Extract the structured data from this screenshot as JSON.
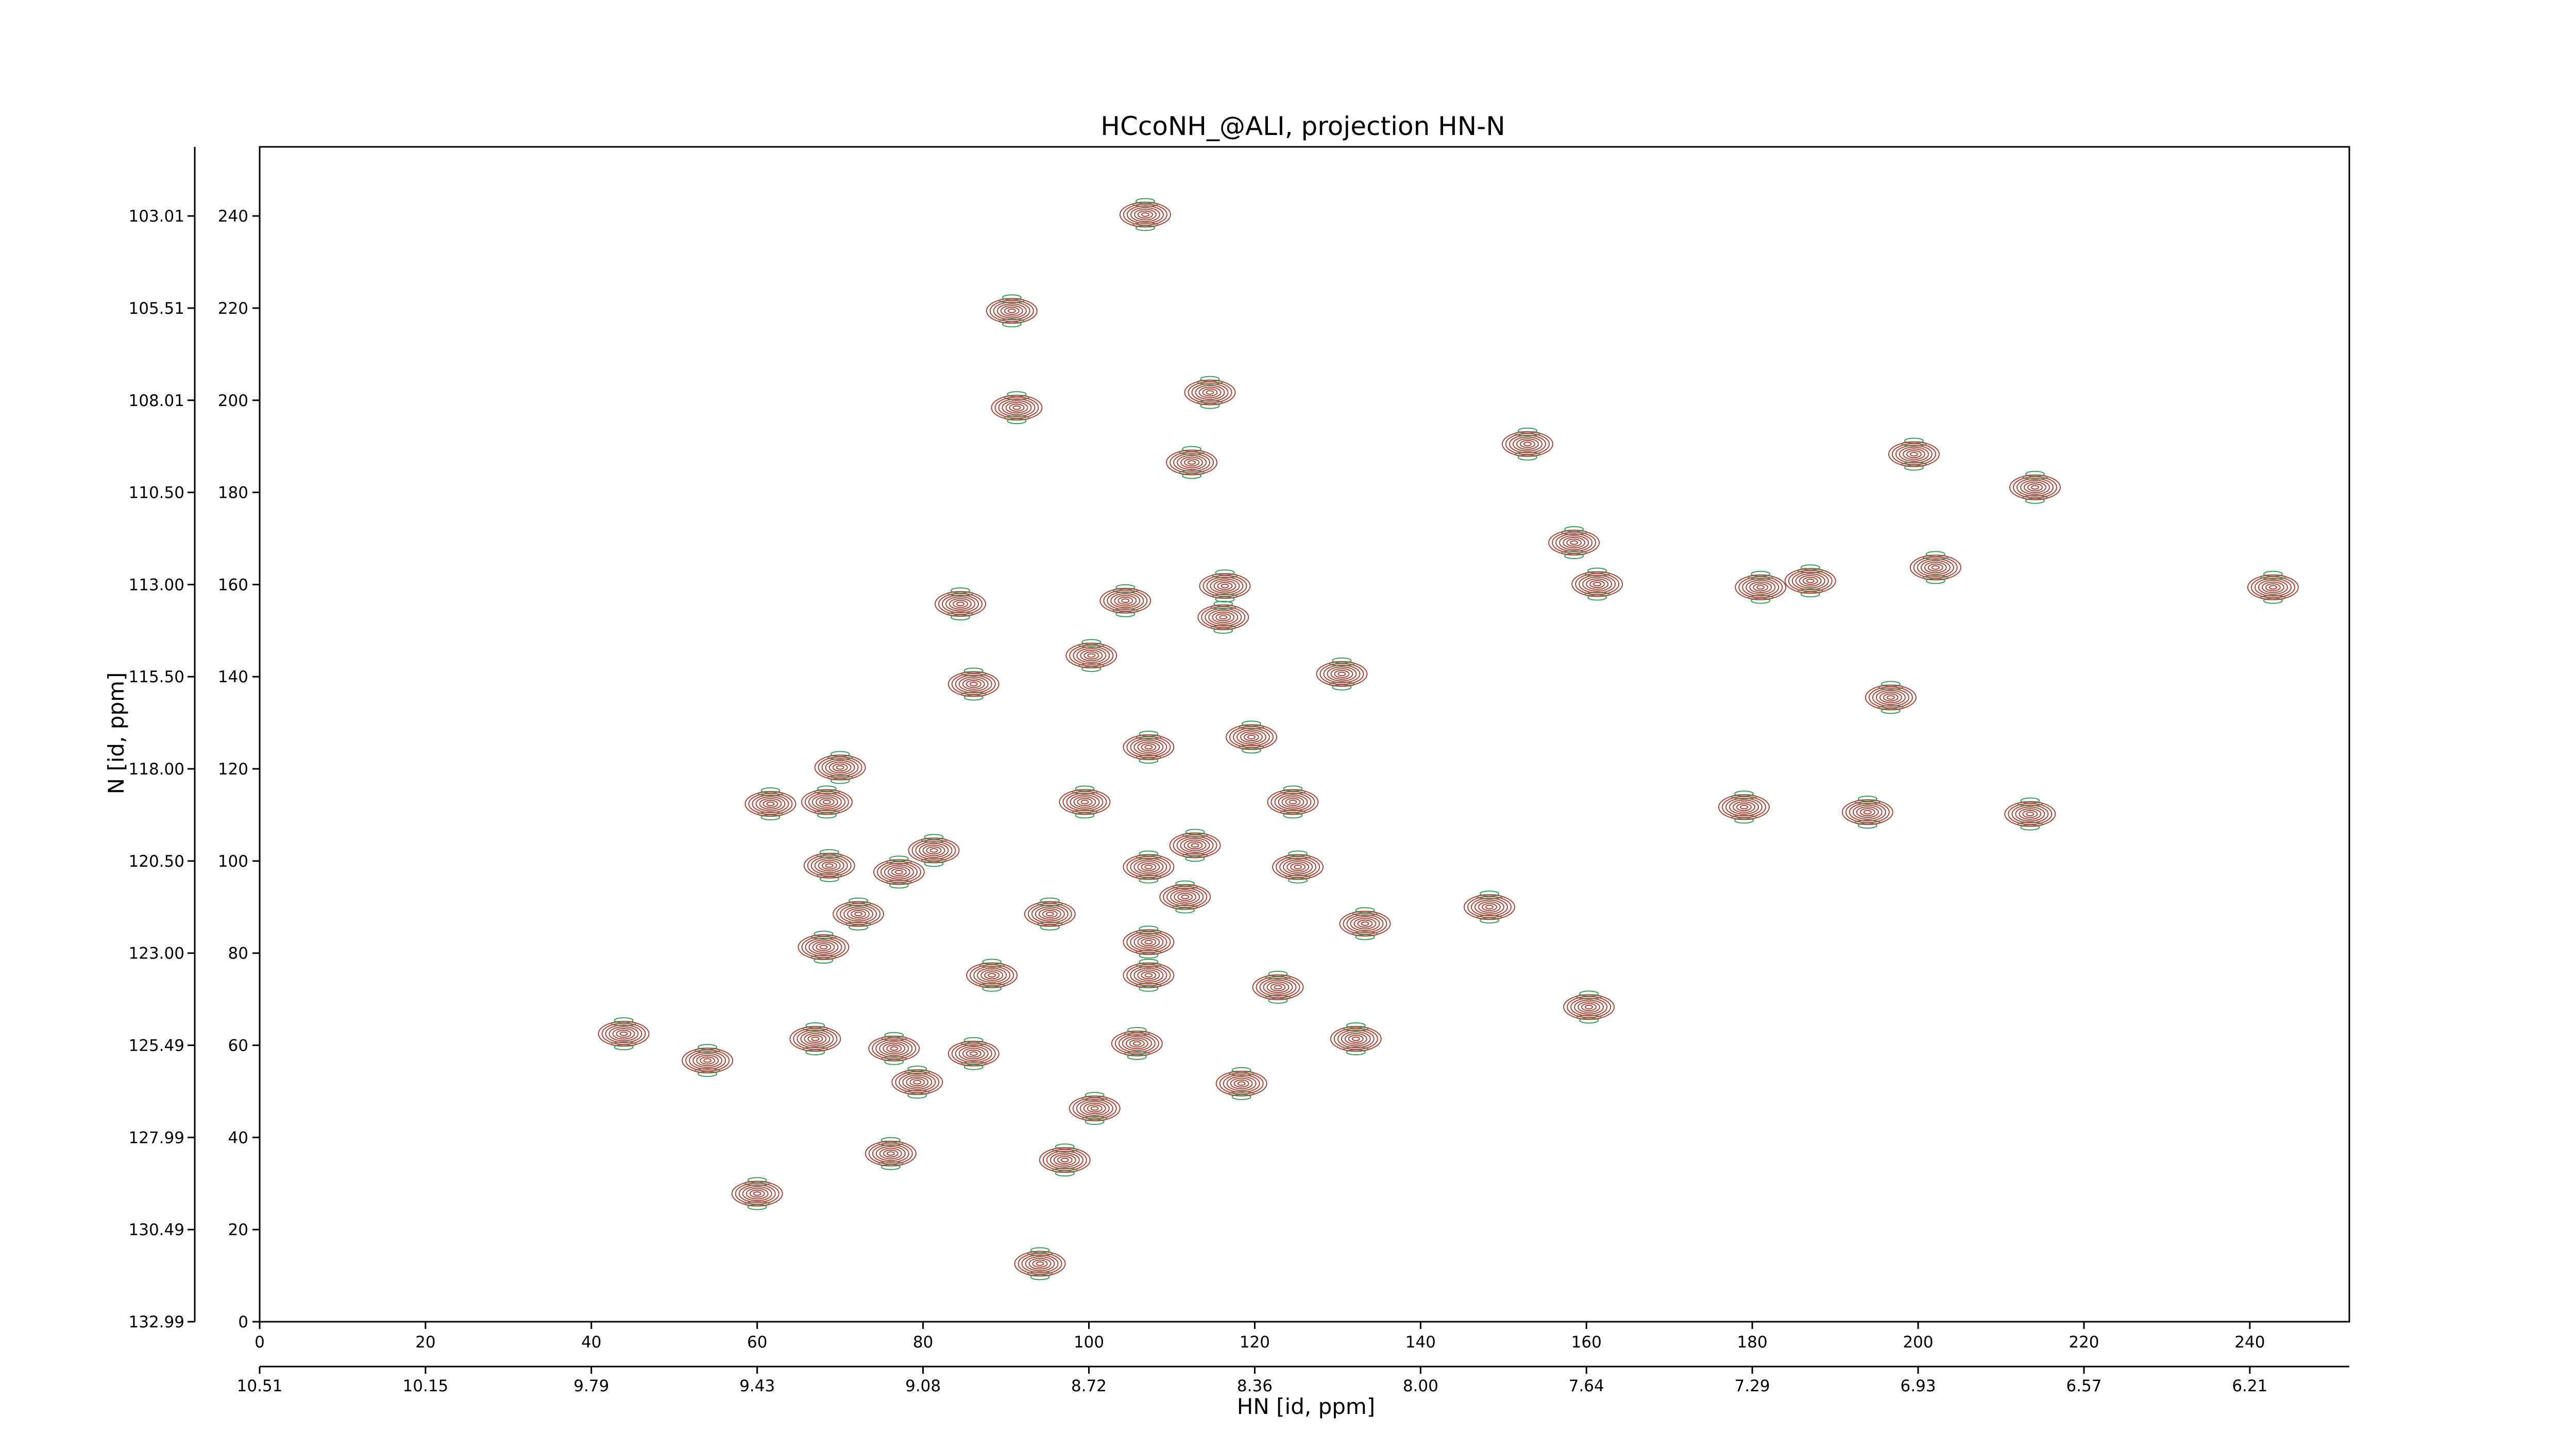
{
  "chart_data": {
    "type": "contour",
    "title": "HCcoNH_@ALI, projection HN-N",
    "x_label": "HN [id, ppm]",
    "y_label": "N [id, ppm]",
    "xlim": [
      0,
      252
    ],
    "ylim": [
      0,
      255
    ],
    "xticks": [
      0,
      20,
      40,
      60,
      80,
      100,
      120,
      140,
      160,
      180,
      200,
      220,
      240
    ],
    "yticks": [
      0,
      20,
      40,
      60,
      80,
      100,
      120,
      140,
      160,
      180,
      200,
      220,
      240
    ],
    "x2ticks": [
      {
        "value": 0,
        "label": "10.51"
      },
      {
        "value": 20,
        "label": "10.15"
      },
      {
        "value": 40,
        "label": "9.79"
      },
      {
        "value": 60,
        "label": "9.43"
      },
      {
        "value": 80,
        "label": "9.08"
      },
      {
        "value": 100,
        "label": "8.72"
      },
      {
        "value": 120,
        "label": "8.36"
      },
      {
        "value": 140,
        "label": "8.00"
      },
      {
        "value": 160,
        "label": "7.64"
      },
      {
        "value": 180,
        "label": "7.29"
      },
      {
        "value": 200,
        "label": "6.93"
      },
      {
        "value": 220,
        "label": "6.57"
      },
      {
        "value": 240,
        "label": "6.21"
      }
    ],
    "y2ticks": [
      {
        "value": 0,
        "label": "132.99"
      },
      {
        "value": 20,
        "label": "130.49"
      },
      {
        "value": 40,
        "label": "127.99"
      },
      {
        "value": 60,
        "label": "125.49"
      },
      {
        "value": 80,
        "label": "123.00"
      },
      {
        "value": 100,
        "label": "120.50"
      },
      {
        "value": 120,
        "label": "118.00"
      },
      {
        "value": 140,
        "label": "115.50"
      },
      {
        "value": 160,
        "label": "113.00"
      },
      {
        "value": 180,
        "label": "110.50"
      },
      {
        "value": 200,
        "label": "108.01"
      },
      {
        "value": 220,
        "label": "105.51"
      },
      {
        "value": 240,
        "label": "103.01"
      }
    ],
    "positive_color": "#a0493c",
    "negative_color": "#3c9a5c",
    "peaks": {
      "x": [
        106.8,
        90.7,
        91.3,
        114.6,
        112.4,
        152.9,
        199.5,
        214.1,
        158.5,
        161.3,
        202.1,
        181.0,
        187.0,
        242.8,
        84.5,
        104.4,
        116.4,
        116.2,
        100.3,
        86.1,
        130.5,
        196.7,
        107.2,
        119.6,
        70.0,
        61.6,
        68.4,
        99.5,
        124.6,
        179.0,
        193.9,
        213.5,
        68.7,
        77.1,
        81.3,
        107.2,
        112.8,
        125.2,
        111.6,
        148.3,
        72.2,
        95.3,
        133.3,
        68.0,
        107.2,
        88.3,
        107.2,
        122.8,
        160.3,
        43.9,
        67.0,
        76.5,
        86.1,
        105.8,
        132.2,
        54.0,
        79.3,
        118.4,
        100.7,
        76.1,
        97.1,
        60.0,
        94.1
      ],
      "y": [
        240.3,
        219.4,
        198.4,
        201.7,
        186.5,
        190.5,
        188.3,
        181.1,
        169.1,
        160.1,
        163.7,
        159.4,
        160.8,
        159.4,
        155.8,
        156.5,
        159.7,
        152.9,
        144.6,
        138.4,
        140.6,
        135.5,
        124.7,
        126.9,
        120.3,
        112.4,
        112.8,
        112.8,
        112.8,
        111.7,
        110.6,
        110.2,
        99.0,
        97.6,
        102.3,
        98.7,
        103.4,
        98.7,
        92.2,
        90.0,
        88.5,
        88.5,
        86.4,
        81.3,
        82.4,
        75.2,
        75.2,
        72.6,
        68.3,
        62.5,
        61.4,
        59.3,
        58.2,
        60.4,
        61.4,
        56.7,
        52.0,
        51.7,
        46.3,
        36.5,
        35.1,
        27.8,
        12.6
      ]
    }
  }
}
